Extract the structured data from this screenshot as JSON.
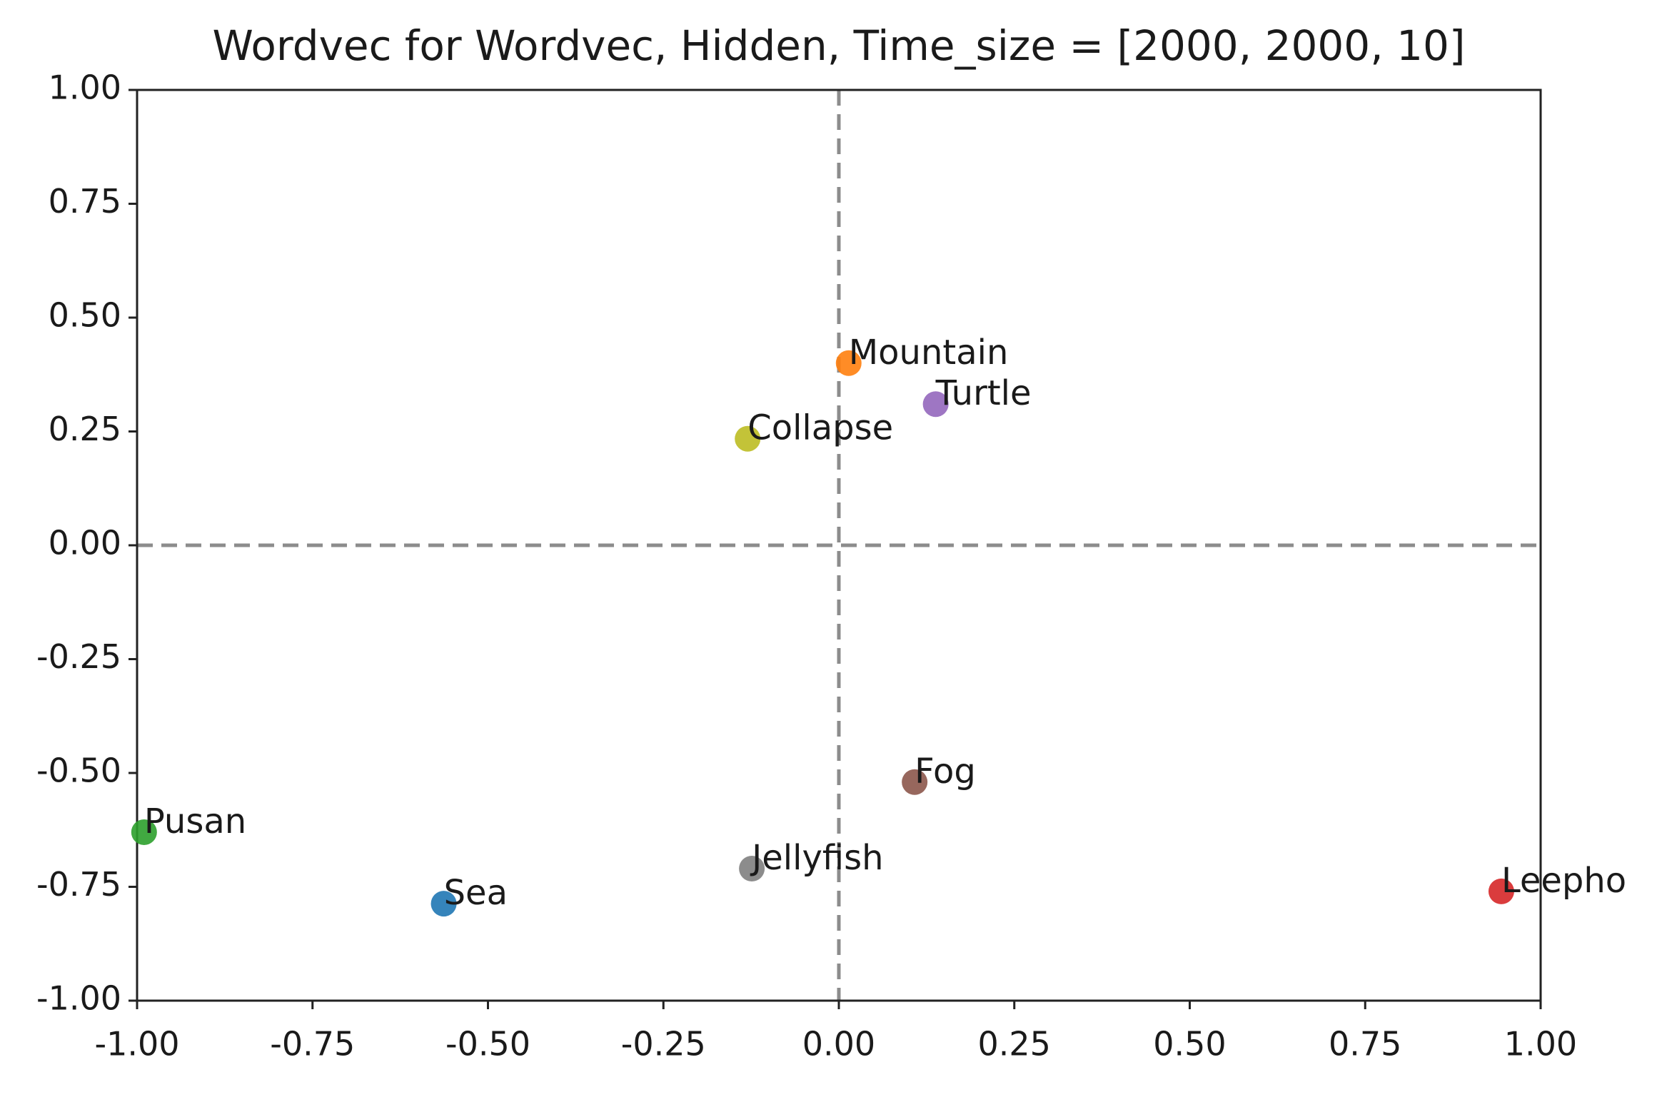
{
  "chart_data": {
    "type": "scatter",
    "title": "Wordvec for Wordvec, Hidden, Time_size =   [2000, 2000, 10]",
    "points": [
      {
        "label": "Mountain",
        "x": 0.014,
        "y": 0.4,
        "color": "#ff7f0e"
      },
      {
        "label": "Turtle",
        "x": 0.138,
        "y": 0.31,
        "color": "#9467bd"
      },
      {
        "label": "Collapse",
        "x": -0.13,
        "y": 0.234,
        "color": "#bcbd22"
      },
      {
        "label": "Fog",
        "x": 0.108,
        "y": -0.52,
        "color": "#8c564b"
      },
      {
        "label": "Pusan",
        "x": -0.99,
        "y": -0.63,
        "color": "#2ca02c"
      },
      {
        "label": "Jellyfish",
        "x": -0.124,
        "y": -0.71,
        "color": "#7f7f7f"
      },
      {
        "label": "Sea",
        "x": -0.563,
        "y": -0.787,
        "color": "#1f77b4"
      },
      {
        "label": "Leepho",
        "x": 0.944,
        "y": -0.76,
        "color": "#d62728"
      }
    ],
    "xlim": [
      -1,
      1
    ],
    "ylim": [
      -1,
      1
    ],
    "xticks": [
      {
        "value": -1,
        "label": "-1.00"
      },
      {
        "value": -0.75,
        "label": "-0.75"
      },
      {
        "value": -0.5,
        "label": "-0.50"
      },
      {
        "value": -0.25,
        "label": "-0.25"
      },
      {
        "value": 0,
        "label": "0.00"
      },
      {
        "value": 0.25,
        "label": "0.25"
      },
      {
        "value": 0.5,
        "label": "0.50"
      },
      {
        "value": 0.75,
        "label": "0.75"
      },
      {
        "value": 1,
        "label": "1.00"
      }
    ],
    "yticks": [
      {
        "value": -1,
        "label": "-1.00"
      },
      {
        "value": -0.75,
        "label": "-0.75"
      },
      {
        "value": -0.5,
        "label": "-0.50"
      },
      {
        "value": -0.25,
        "label": "-0.25"
      },
      {
        "value": 0,
        "label": "0.00"
      },
      {
        "value": 0.25,
        "label": "0.25"
      },
      {
        "value": 0.5,
        "label": "0.50"
      },
      {
        "value": 0.75,
        "label": "0.75"
      },
      {
        "value": 1,
        "label": "1.00"
      }
    ],
    "reference_lines": {
      "x": 0,
      "y": 0
    }
  }
}
